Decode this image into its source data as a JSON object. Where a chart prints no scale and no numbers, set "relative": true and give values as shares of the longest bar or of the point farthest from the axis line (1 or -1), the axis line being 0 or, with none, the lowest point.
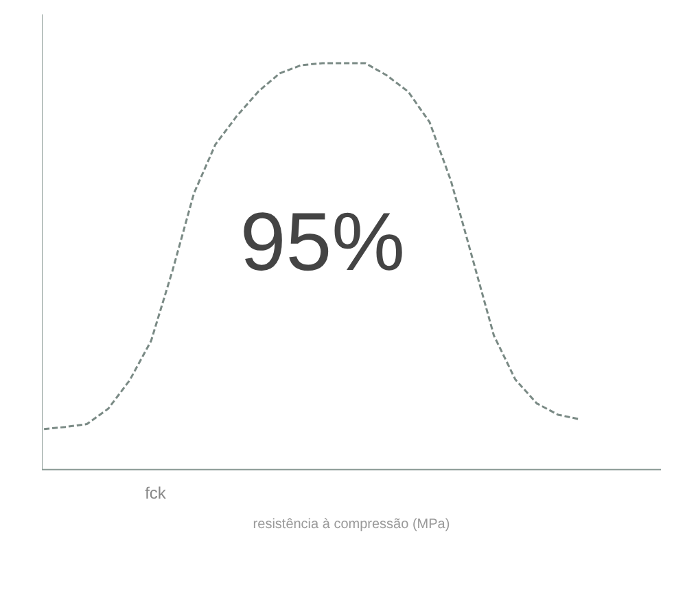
{
  "chart_data": {
    "type": "line",
    "relative": true,
    "xlabel": "resistência à compressão (MPa)",
    "annotations": [
      "95%",
      "fck"
    ],
    "grid": false,
    "marker": "none",
    "line_style": "dashed",
    "categories": [
      null,
      null,
      null,
      null,
      null,
      null,
      null,
      null,
      null,
      null,
      null,
      null,
      null,
      null,
      null,
      null,
      null,
      null,
      null,
      null,
      null,
      null,
      null,
      null,
      null,
      null
    ],
    "series": [
      {
        "color": "#7a8a85",
        "values": [
          0.1,
          0.105,
          0.112,
          0.15,
          0.22,
          0.317,
          0.49,
          0.68,
          0.8,
          0.87,
          0.93,
          0.975,
          0.995,
          1.0,
          1.0,
          1.0,
          0.97,
          0.93,
          0.855,
          0.71,
          0.52,
          0.33,
          0.222,
          0.163,
          0.135,
          0.124
        ]
      }
    ]
  }
}
